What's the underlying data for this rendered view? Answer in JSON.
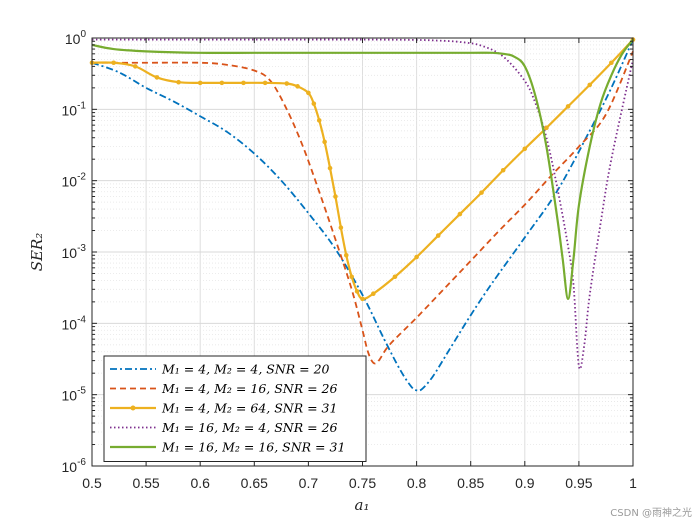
{
  "chart_data": {
    "type": "line",
    "xlabel": "a₁",
    "ylabel": "SER₂",
    "xlim": [
      0.5,
      1.0
    ],
    "ylim": [
      1e-06,
      1
    ],
    "yscale": "log",
    "grid": true,
    "legend_position": "bottom-left",
    "x_ticks": [
      "0.5",
      "0.55",
      "0.6",
      "0.65",
      "0.7",
      "0.75",
      "0.8",
      "0.85",
      "0.9",
      "0.95",
      "1"
    ],
    "y_ticks": [
      {
        "base": "10",
        "exp": "-6",
        "value": 1e-06
      },
      {
        "base": "10",
        "exp": "-5",
        "value": 1e-05
      },
      {
        "base": "10",
        "exp": "-4",
        "value": 0.0001
      },
      {
        "base": "10",
        "exp": "-3",
        "value": 0.001
      },
      {
        "base": "10",
        "exp": "-2",
        "value": 0.01
      },
      {
        "base": "10",
        "exp": "-1",
        "value": 0.1
      },
      {
        "base": "10",
        "exp": "0",
        "value": 1
      }
    ],
    "series": [
      {
        "name": "M₁ = 4, M₂ = 4, SNR = 20",
        "color": "#0072BD",
        "dash": "dashdot",
        "marker": "none",
        "x": [
          0.5,
          0.525,
          0.55,
          0.575,
          0.6,
          0.625,
          0.65,
          0.675,
          0.7,
          0.725,
          0.75,
          0.77,
          0.785,
          0.795,
          0.8,
          0.805,
          0.815,
          0.83,
          0.85,
          0.87,
          0.9,
          0.93,
          0.96,
          0.98,
          1.0
        ],
        "y": [
          0.45,
          0.33,
          0.2,
          0.13,
          0.08,
          0.048,
          0.024,
          0.01,
          0.0035,
          0.0011,
          0.00025,
          6e-05,
          2.2e-05,
          1.3e-05,
          1.15e-05,
          1.2e-05,
          1.8e-05,
          4.2e-05,
          0.00013,
          0.00037,
          0.0016,
          0.0072,
          0.05,
          0.2,
          0.95
        ]
      },
      {
        "name": "M₁ = 4, M₂ = 16, SNR = 26",
        "color": "#D95319",
        "dash": "dash",
        "marker": "none",
        "x": [
          0.5,
          0.52,
          0.55,
          0.6,
          0.625,
          0.65,
          0.665,
          0.68,
          0.695,
          0.71,
          0.725,
          0.74,
          0.75,
          0.755,
          0.76,
          0.765,
          0.775,
          0.8,
          0.825,
          0.85,
          0.875,
          0.9,
          0.925,
          0.95,
          0.975,
          1.0
        ],
        "y": [
          0.45,
          0.45,
          0.45,
          0.45,
          0.42,
          0.35,
          0.25,
          0.1,
          0.03,
          0.007,
          0.0015,
          0.0003,
          8e-05,
          4e-05,
          2.8e-05,
          3e-05,
          5e-05,
          0.00012,
          0.0003,
          0.00075,
          0.0019,
          0.0046,
          0.012,
          0.03,
          0.085,
          0.65
        ]
      },
      {
        "name": "M₁ = 4, M₂ = 64, SNR = 31",
        "color": "#EDB120",
        "dash": "solid",
        "marker": "dot",
        "x": [
          0.5,
          0.52,
          0.54,
          0.56,
          0.58,
          0.6,
          0.62,
          0.64,
          0.66,
          0.68,
          0.69,
          0.7,
          0.705,
          0.71,
          0.715,
          0.72,
          0.725,
          0.73,
          0.735,
          0.74,
          0.745,
          0.75,
          0.76,
          0.78,
          0.8,
          0.82,
          0.84,
          0.86,
          0.88,
          0.9,
          0.92,
          0.94,
          0.96,
          0.98,
          1.0
        ],
        "y": [
          0.45,
          0.45,
          0.4,
          0.28,
          0.24,
          0.235,
          0.235,
          0.235,
          0.235,
          0.23,
          0.21,
          0.17,
          0.12,
          0.07,
          0.035,
          0.015,
          0.006,
          0.0022,
          0.0009,
          0.00045,
          0.00028,
          0.00022,
          0.00026,
          0.00045,
          0.00085,
          0.0017,
          0.0034,
          0.0068,
          0.014,
          0.028,
          0.055,
          0.11,
          0.22,
          0.45,
          0.95
        ]
      },
      {
        "name": "M₁ = 16, M₂ = 4, SNR = 26",
        "color": "#7E2F8E",
        "dash": "dot",
        "marker": "none",
        "x": [
          0.5,
          0.55,
          0.6,
          0.65,
          0.7,
          0.75,
          0.8,
          0.82,
          0.84,
          0.86,
          0.88,
          0.9,
          0.91,
          0.92,
          0.93,
          0.94,
          0.945,
          0.95,
          0.955,
          0.96,
          0.97,
          0.98,
          1.0
        ],
        "y": [
          0.95,
          0.95,
          0.95,
          0.95,
          0.95,
          0.95,
          0.94,
          0.92,
          0.88,
          0.78,
          0.55,
          0.25,
          0.12,
          0.04,
          0.008,
          0.0012,
          0.00035,
          2.5e-05,
          5e-05,
          0.00025,
          0.0025,
          0.02,
          0.5
        ]
      },
      {
        "name": "M₁ = 16, M₂ = 16, SNR = 31",
        "color": "#77AC30",
        "dash": "solid",
        "marker": "none",
        "x": [
          0.5,
          0.52,
          0.55,
          0.6,
          0.65,
          0.7,
          0.75,
          0.8,
          0.85,
          0.87,
          0.88,
          0.89,
          0.9,
          0.91,
          0.92,
          0.93,
          0.935,
          0.94,
          0.945,
          0.95,
          0.96,
          0.97,
          0.98,
          0.99,
          1.0
        ],
        "y": [
          0.8,
          0.7,
          0.65,
          0.62,
          0.62,
          0.62,
          0.62,
          0.62,
          0.62,
          0.62,
          0.6,
          0.55,
          0.4,
          0.15,
          0.03,
          0.003,
          0.0008,
          0.00022,
          0.0008,
          0.0045,
          0.03,
          0.12,
          0.3,
          0.6,
          0.95
        ]
      }
    ]
  },
  "watermark": "CSDN @雨神之光"
}
